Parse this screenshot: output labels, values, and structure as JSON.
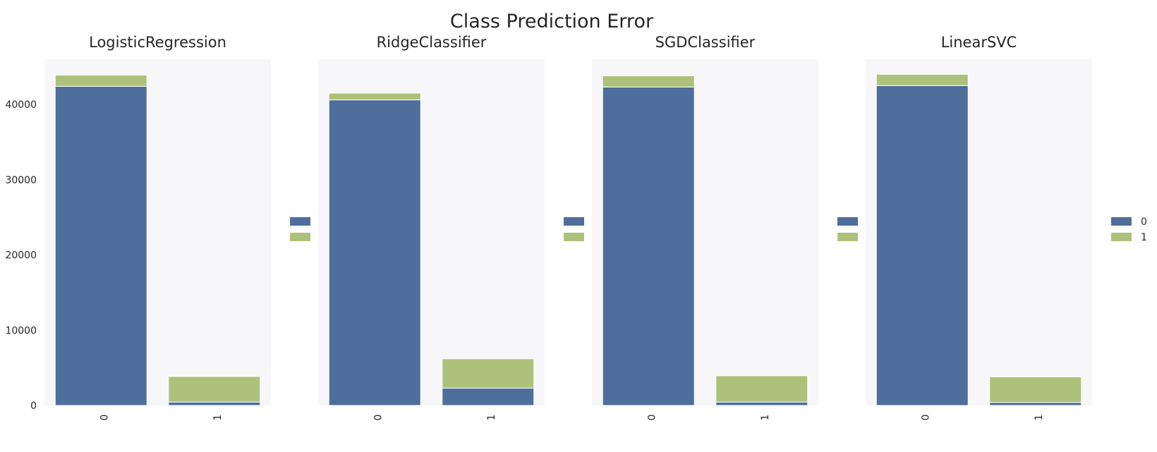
{
  "figure": {
    "title": "Class Prediction Error",
    "colors": {
      "class_0": "#4e6f9c",
      "class_1": "#aec17a",
      "axes_bg": "#f7f7f9"
    }
  },
  "chart_data": [
    {
      "type": "bar",
      "stacked": true,
      "title": "LogisticRegression",
      "categories": [
        "0",
        "1"
      ],
      "series": [
        {
          "name": "0",
          "values": [
            42400,
            450
          ]
        },
        {
          "name": "1",
          "values": [
            1500,
            3400
          ]
        }
      ],
      "ylim": [
        0,
        46000
      ],
      "yticks": [
        "0",
        "10000",
        "20000",
        "30000",
        "40000"
      ],
      "show_yticks": true,
      "legend_labels_shown": false,
      "legend": "right",
      "grid": false
    },
    {
      "type": "bar",
      "stacked": true,
      "title": "RidgeClassifier",
      "categories": [
        "0",
        "1"
      ],
      "series": [
        {
          "name": "0",
          "values": [
            40600,
            2300
          ]
        },
        {
          "name": "1",
          "values": [
            900,
            3900
          ]
        }
      ],
      "ylim": [
        0,
        46000
      ],
      "show_yticks": false,
      "legend_labels_shown": false,
      "legend": "right",
      "grid": false
    },
    {
      "type": "bar",
      "stacked": true,
      "title": "SGDClassifier",
      "categories": [
        "0",
        "1"
      ],
      "series": [
        {
          "name": "0",
          "values": [
            42300,
            450
          ]
        },
        {
          "name": "1",
          "values": [
            1500,
            3500
          ]
        }
      ],
      "ylim": [
        0,
        46000
      ],
      "show_yticks": false,
      "legend_labels_shown": false,
      "legend": "right",
      "grid": false
    },
    {
      "type": "bar",
      "stacked": true,
      "title": "LinearSVC",
      "categories": [
        "0",
        "1"
      ],
      "series": [
        {
          "name": "0",
          "values": [
            42500,
            400
          ]
        },
        {
          "name": "1",
          "values": [
            1500,
            3400
          ]
        }
      ],
      "ylim": [
        0,
        46000
      ],
      "show_yticks": false,
      "legend_labels_shown": true,
      "legend": "right",
      "grid": false
    }
  ]
}
